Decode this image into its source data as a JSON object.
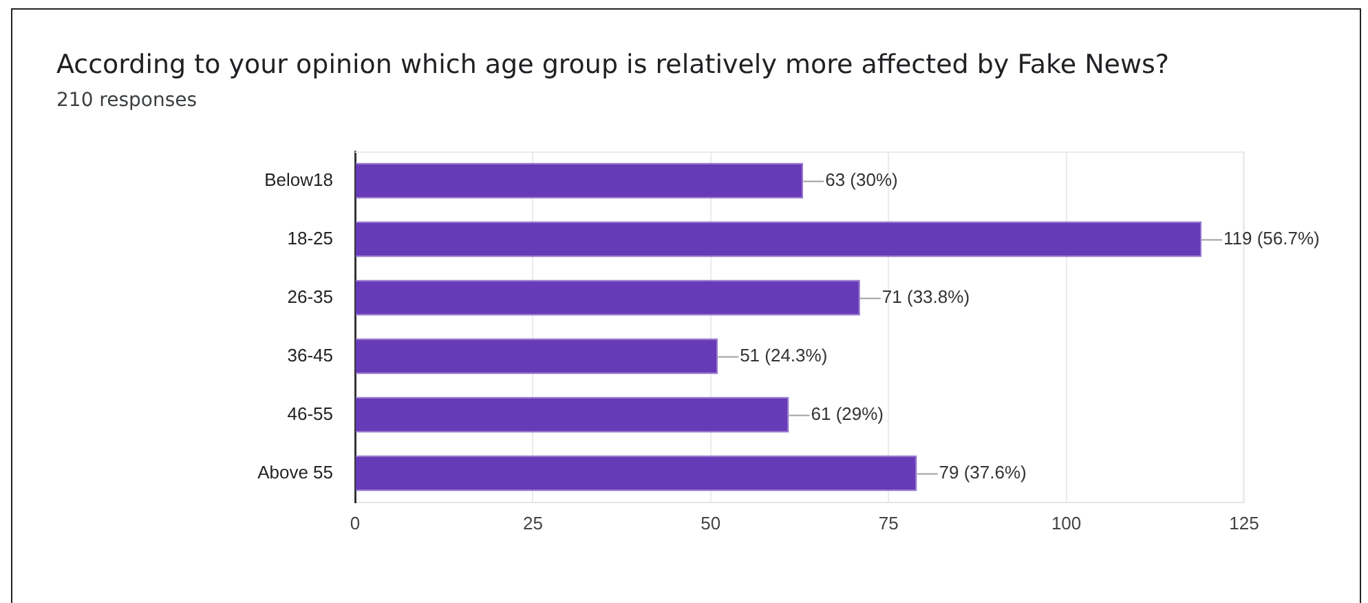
{
  "chart_data": {
    "type": "bar",
    "orientation": "horizontal",
    "title": "According to your opinion which age group is relatively more affected by Fake News?",
    "subtitle": "210 responses",
    "categories": [
      "Below18",
      "18-25",
      "26-35",
      "36-45",
      "46-55",
      "Above 55"
    ],
    "values": [
      63,
      119,
      71,
      51,
      61,
      79
    ],
    "value_labels": [
      "63 (30%)",
      "119 (56.7%)",
      "71 (33.8%)",
      "51 (24.3%)",
      "61 (29%)",
      "79 (37.6%)"
    ],
    "color": "#673ab7",
    "xlim": [
      0,
      125
    ],
    "xticks": [
      0,
      25,
      50,
      75,
      100,
      125
    ],
    "grid": "x"
  }
}
